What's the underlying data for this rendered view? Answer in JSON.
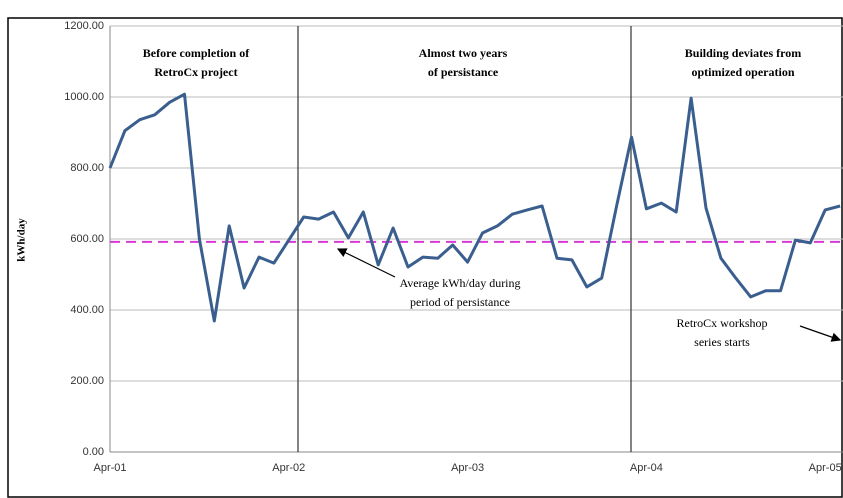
{
  "chart_data": {
    "type": "line",
    "y_label": "kWh/day",
    "categories": [
      "Apr-01",
      null,
      null,
      null,
      null,
      null,
      null,
      null,
      null,
      null,
      null,
      null,
      "Apr-02",
      null,
      null,
      null,
      null,
      null,
      null,
      null,
      null,
      null,
      null,
      null,
      "Apr-03",
      null,
      null,
      null,
      null,
      null,
      null,
      null,
      null,
      null,
      null,
      null,
      "Apr-04",
      null,
      null,
      null,
      null,
      null,
      null,
      null,
      null,
      null,
      null,
      null,
      "Apr-05",
      null
    ],
    "series": [
      {
        "name": "kWh/day",
        "color": "#3a5f8f",
        "values": [
          800,
          905,
          936,
          950,
          985,
          1008,
          600,
          369,
          637,
          462,
          549,
          532,
          597,
          662,
          656,
          676,
          603,
          676,
          527,
          631,
          521,
          549,
          546,
          583,
          535,
          617,
          637,
          670,
          682,
          693,
          546,
          541,
          465,
          490,
          693,
          887,
          685,
          701,
          676,
          997,
          687,
          546,
          490,
          437,
          454,
          454,
          597,
          589,
          682,
          693
        ]
      }
    ],
    "ylim": [
      0,
      1200
    ],
    "yticks": [
      {
        "value": 0,
        "label": "0.00"
      },
      {
        "value": 200,
        "label": "200.00"
      },
      {
        "value": 400,
        "label": "400.00"
      },
      {
        "value": 600,
        "label": "600.00"
      },
      {
        "value": 800,
        "label": "800.00"
      },
      {
        "value": 1000,
        "label": "1000.00"
      },
      {
        "value": 1200,
        "label": "1200.00"
      }
    ],
    "grid": true,
    "reference_line": {
      "value": 592,
      "color": "#d63ad6"
    },
    "annotations": {
      "phase1": [
        "Before completion of",
        "RetroCx project"
      ],
      "phase2": [
        "Almost two years",
        "of persistance"
      ],
      "phase3": [
        "Building deviates from",
        "optimized operation"
      ],
      "average": [
        "Average kWh/day during",
        "period of persistance"
      ],
      "workshop": [
        "RetroCx workshop",
        "series starts"
      ]
    }
  }
}
